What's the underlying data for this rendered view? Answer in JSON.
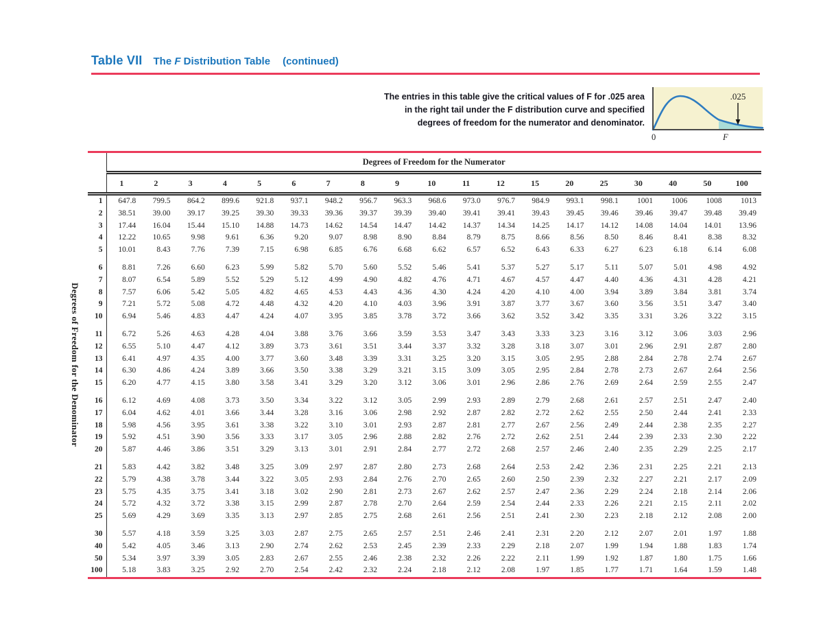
{
  "header": {
    "table_label": "Table VII",
    "title_pre": "The ",
    "title_f": "F",
    "title_post": " Distribution Table",
    "continued": "(continued)"
  },
  "note": {
    "line1": "The entries in this table give the critical values of F for .025 area",
    "line2": "in the right tail under the F distribution curve and specified",
    "line3": "degrees of freedom for the numerator and denominator."
  },
  "figure": {
    "area_label": ".025",
    "origin_label": "0",
    "axis_label": "F"
  },
  "colors": {
    "accent_blue": "#1b76bc",
    "rule_red": "#eb3b5b",
    "figure_background": "#f6f2d0",
    "curve_blue": "#2e7cc0",
    "tail_fill": "#aaddd8"
  },
  "table": {
    "numerator_axis_label": "Degrees of Freedom for the Numerator",
    "denominator_axis_label": "Degrees of Freedom for the Denominator",
    "columns": [
      "1",
      "2",
      "3",
      "4",
      "5",
      "6",
      "7",
      "8",
      "9",
      "10",
      "11",
      "12",
      "15",
      "20",
      "25",
      "30",
      "40",
      "50",
      "100"
    ],
    "row_groups": [
      {
        "rows": [
          {
            "df": "1",
            "values": [
              "647.8",
              "799.5",
              "864.2",
              "899.6",
              "921.8",
              "937.1",
              "948.2",
              "956.7",
              "963.3",
              "968.6",
              "973.0",
              "976.7",
              "984.9",
              "993.1",
              "998.1",
              "1001",
              "1006",
              "1008",
              "1013"
            ]
          },
          {
            "df": "2",
            "values": [
              "38.51",
              "39.00",
              "39.17",
              "39.25",
              "39.30",
              "39.33",
              "39.36",
              "39.37",
              "39.39",
              "39.40",
              "39.41",
              "39.41",
              "39.43",
              "39.45",
              "39.46",
              "39.46",
              "39.47",
              "39.48",
              "39.49"
            ]
          },
          {
            "df": "3",
            "values": [
              "17.44",
              "16.04",
              "15.44",
              "15.10",
              "14.88",
              "14.73",
              "14.62",
              "14.54",
              "14.47",
              "14.42",
              "14.37",
              "14.34",
              "14.25",
              "14.17",
              "14.12",
              "14.08",
              "14.04",
              "14.01",
              "13.96"
            ]
          },
          {
            "df": "4",
            "values": [
              "12.22",
              "10.65",
              "9.98",
              "9.61",
              "6.36",
              "9.20",
              "9.07",
              "8.98",
              "8.90",
              "8.84",
              "8.79",
              "8.75",
              "8.66",
              "8.56",
              "8.50",
              "8.46",
              "8.41",
              "8.38",
              "8.32"
            ]
          },
          {
            "df": "5",
            "values": [
              "10.01",
              "8.43",
              "7.76",
              "7.39",
              "7.15",
              "6.98",
              "6.85",
              "6.76",
              "6.68",
              "6.62",
              "6.57",
              "6.52",
              "6.43",
              "6.33",
              "6.27",
              "6.23",
              "6.18",
              "6.14",
              "6.08"
            ]
          }
        ]
      },
      {
        "rows": [
          {
            "df": "6",
            "values": [
              "8.81",
              "7.26",
              "6.60",
              "6.23",
              "5.99",
              "5.82",
              "5.70",
              "5.60",
              "5.52",
              "5.46",
              "5.41",
              "5.37",
              "5.27",
              "5.17",
              "5.11",
              "5.07",
              "5.01",
              "4.98",
              "4.92"
            ]
          },
          {
            "df": "7",
            "values": [
              "8.07",
              "6.54",
              "5.89",
              "5.52",
              "5.29",
              "5.12",
              "4.99",
              "4.90",
              "4.82",
              "4.76",
              "4.71",
              "4.67",
              "4.57",
              "4.47",
              "4.40",
              "4.36",
              "4.31",
              "4.28",
              "4.21"
            ]
          },
          {
            "df": "8",
            "values": [
              "7.57",
              "6.06",
              "5.42",
              "5.05",
              "4.82",
              "4.65",
              "4.53",
              "4.43",
              "4.36",
              "4.30",
              "4.24",
              "4.20",
              "4.10",
              "4.00",
              "3.94",
              "3.89",
              "3.84",
              "3.81",
              "3.74"
            ]
          },
          {
            "df": "9",
            "values": [
              "7.21",
              "5.72",
              "5.08",
              "4.72",
              "4.48",
              "4.32",
              "4.20",
              "4.10",
              "4.03",
              "3.96",
              "3.91",
              "3.87",
              "3.77",
              "3.67",
              "3.60",
              "3.56",
              "3.51",
              "3.47",
              "3.40"
            ]
          },
          {
            "df": "10",
            "values": [
              "6.94",
              "5.46",
              "4.83",
              "4.47",
              "4.24",
              "4.07",
              "3.95",
              "3.85",
              "3.78",
              "3.72",
              "3.66",
              "3.62",
              "3.52",
              "3.42",
              "3.35",
              "3.31",
              "3.26",
              "3.22",
              "3.15"
            ]
          }
        ]
      },
      {
        "rows": [
          {
            "df": "11",
            "values": [
              "6.72",
              "5.26",
              "4.63",
              "4.28",
              "4.04",
              "3.88",
              "3.76",
              "3.66",
              "3.59",
              "3.53",
              "3.47",
              "3.43",
              "3.33",
              "3.23",
              "3.16",
              "3.12",
              "3.06",
              "3.03",
              "2.96"
            ]
          },
          {
            "df": "12",
            "values": [
              "6.55",
              "5.10",
              "4.47",
              "4.12",
              "3.89",
              "3.73",
              "3.61",
              "3.51",
              "3.44",
              "3.37",
              "3.32",
              "3.28",
              "3.18",
              "3.07",
              "3.01",
              "2.96",
              "2.91",
              "2.87",
              "2.80"
            ]
          },
          {
            "df": "13",
            "values": [
              "6.41",
              "4.97",
              "4.35",
              "4.00",
              "3.77",
              "3.60",
              "3.48",
              "3.39",
              "3.31",
              "3.25",
              "3.20",
              "3.15",
              "3.05",
              "2.95",
              "2.88",
              "2.84",
              "2.78",
              "2.74",
              "2.67"
            ]
          },
          {
            "df": "14",
            "values": [
              "6.30",
              "4.86",
              "4.24",
              "3.89",
              "3.66",
              "3.50",
              "3.38",
              "3.29",
              "3.21",
              "3.15",
              "3.09",
              "3.05",
              "2.95",
              "2.84",
              "2.78",
              "2.73",
              "2.67",
              "2.64",
              "2.56"
            ]
          },
          {
            "df": "15",
            "values": [
              "6.20",
              "4.77",
              "4.15",
              "3.80",
              "3.58",
              "3.41",
              "3.29",
              "3.20",
              "3.12",
              "3.06",
              "3.01",
              "2.96",
              "2.86",
              "2.76",
              "2.69",
              "2.64",
              "2.59",
              "2.55",
              "2.47"
            ]
          }
        ]
      },
      {
        "rows": [
          {
            "df": "16",
            "values": [
              "6.12",
              "4.69",
              "4.08",
              "3.73",
              "3.50",
              "3.34",
              "3.22",
              "3.12",
              "3.05",
              "2.99",
              "2.93",
              "2.89",
              "2.79",
              "2.68",
              "2.61",
              "2.57",
              "2.51",
              "2.47",
              "2.40"
            ]
          },
          {
            "df": "17",
            "values": [
              "6.04",
              "4.62",
              "4.01",
              "3.66",
              "3.44",
              "3.28",
              "3.16",
              "3.06",
              "2.98",
              "2.92",
              "2.87",
              "2.82",
              "2.72",
              "2.62",
              "2.55",
              "2.50",
              "2.44",
              "2.41",
              "2.33"
            ]
          },
          {
            "df": "18",
            "values": [
              "5.98",
              "4.56",
              "3.95",
              "3.61",
              "3.38",
              "3.22",
              "3.10",
              "3.01",
              "2.93",
              "2.87",
              "2.81",
              "2.77",
              "2.67",
              "2.56",
              "2.49",
              "2.44",
              "2.38",
              "2.35",
              "2.27"
            ]
          },
          {
            "df": "19",
            "values": [
              "5.92",
              "4.51",
              "3.90",
              "3.56",
              "3.33",
              "3.17",
              "3.05",
              "2.96",
              "2.88",
              "2.82",
              "2.76",
              "2.72",
              "2.62",
              "2.51",
              "2.44",
              "2.39",
              "2.33",
              "2.30",
              "2.22"
            ]
          },
          {
            "df": "20",
            "values": [
              "5.87",
              "4.46",
              "3.86",
              "3.51",
              "3.29",
              "3.13",
              "3.01",
              "2.91",
              "2.84",
              "2.77",
              "2.72",
              "2.68",
              "2.57",
              "2.46",
              "2.40",
              "2.35",
              "2.29",
              "2.25",
              "2.17"
            ]
          }
        ]
      },
      {
        "rows": [
          {
            "df": "21",
            "values": [
              "5.83",
              "4.42",
              "3.82",
              "3.48",
              "3.25",
              "3.09",
              "2.97",
              "2.87",
              "2.80",
              "2.73",
              "2.68",
              "2.64",
              "2.53",
              "2.42",
              "2.36",
              "2.31",
              "2.25",
              "2.21",
              "2.13"
            ]
          },
          {
            "df": "22",
            "values": [
              "5.79",
              "4.38",
              "3.78",
              "3.44",
              "3.22",
              "3.05",
              "2.93",
              "2.84",
              "2.76",
              "2.70",
              "2.65",
              "2.60",
              "2.50",
              "2.39",
              "2.32",
              "2.27",
              "2.21",
              "2.17",
              "2.09"
            ]
          },
          {
            "df": "23",
            "values": [
              "5.75",
              "4.35",
              "3.75",
              "3.41",
              "3.18",
              "3.02",
              "2.90",
              "2.81",
              "2.73",
              "2.67",
              "2.62",
              "2.57",
              "2.47",
              "2.36",
              "2.29",
              "2.24",
              "2.18",
              "2.14",
              "2.06"
            ]
          },
          {
            "df": "24",
            "values": [
              "5.72",
              "4.32",
              "3.72",
              "3.38",
              "3.15",
              "2.99",
              "2.87",
              "2.78",
              "2.70",
              "2.64",
              "2.59",
              "2.54",
              "2.44",
              "2.33",
              "2.26",
              "2.21",
              "2.15",
              "2.11",
              "2.02"
            ]
          },
          {
            "df": "25",
            "values": [
              "5.69",
              "4.29",
              "3.69",
              "3.35",
              "3.13",
              "2.97",
              "2.85",
              "2.75",
              "2.68",
              "2.61",
              "2.56",
              "2.51",
              "2.41",
              "2.30",
              "2.23",
              "2.18",
              "2.12",
              "2.08",
              "2.00"
            ]
          }
        ]
      },
      {
        "rows": [
          {
            "df": "30",
            "values": [
              "5.57",
              "4.18",
              "3.59",
              "3.25",
              "3.03",
              "2.87",
              "2.75",
              "2.65",
              "2.57",
              "2.51",
              "2.46",
              "2.41",
              "2.31",
              "2.20",
              "2.12",
              "2.07",
              "2.01",
              "1.97",
              "1.88"
            ]
          },
          {
            "df": "40",
            "values": [
              "5.42",
              "4.05",
              "3.46",
              "3.13",
              "2.90",
              "2.74",
              "2.62",
              "2.53",
              "2.45",
              "2.39",
              "2.33",
              "2.29",
              "2.18",
              "2.07",
              "1.99",
              "1.94",
              "1.88",
              "1.83",
              "1.74"
            ]
          },
          {
            "df": "50",
            "values": [
              "5.34",
              "3.97",
              "3.39",
              "3.05",
              "2.83",
              "2.67",
              "2.55",
              "2.46",
              "2.38",
              "2.32",
              "2.26",
              "2.22",
              "2.11",
              "1.99",
              "1.92",
              "1.87",
              "1.80",
              "1.75",
              "1.66"
            ]
          },
          {
            "df": "100",
            "values": [
              "5.18",
              "3.83",
              "3.25",
              "2.92",
              "2.70",
              "2.54",
              "2.42",
              "2.32",
              "2.24",
              "2.18",
              "2.12",
              "2.08",
              "1.97",
              "1.85",
              "1.77",
              "1.71",
              "1.64",
              "1.59",
              "1.48"
            ]
          }
        ]
      }
    ]
  }
}
